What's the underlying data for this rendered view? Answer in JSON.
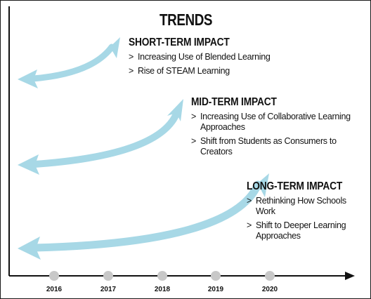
{
  "title": "TRENDS",
  "bullet_marker": ">",
  "colors": {
    "arrow": "#a7d8e6",
    "arrow_edge": "#8fc8da",
    "axis": "#111111",
    "year_dot": "#c8c8c8",
    "text": "#111111"
  },
  "groups": [
    {
      "heading": "SHORT-TERM IMPACT",
      "items": [
        "Increasing Use of Blended Learning",
        "Rise of STEAM Learning"
      ]
    },
    {
      "heading": "MID-TERM IMPACT",
      "items": [
        "Increasing Use of Collaborative Learning Approaches",
        "Shift from Students as Consumers to Creators"
      ]
    },
    {
      "heading": "LONG-TERM IMPACT",
      "items": [
        "Rethinking How Schools Work",
        "Shift to Deeper Learning Approaches"
      ]
    }
  ],
  "timeline": {
    "years": [
      "2016",
      "2017",
      "2018",
      "2019",
      "2020"
    ]
  }
}
